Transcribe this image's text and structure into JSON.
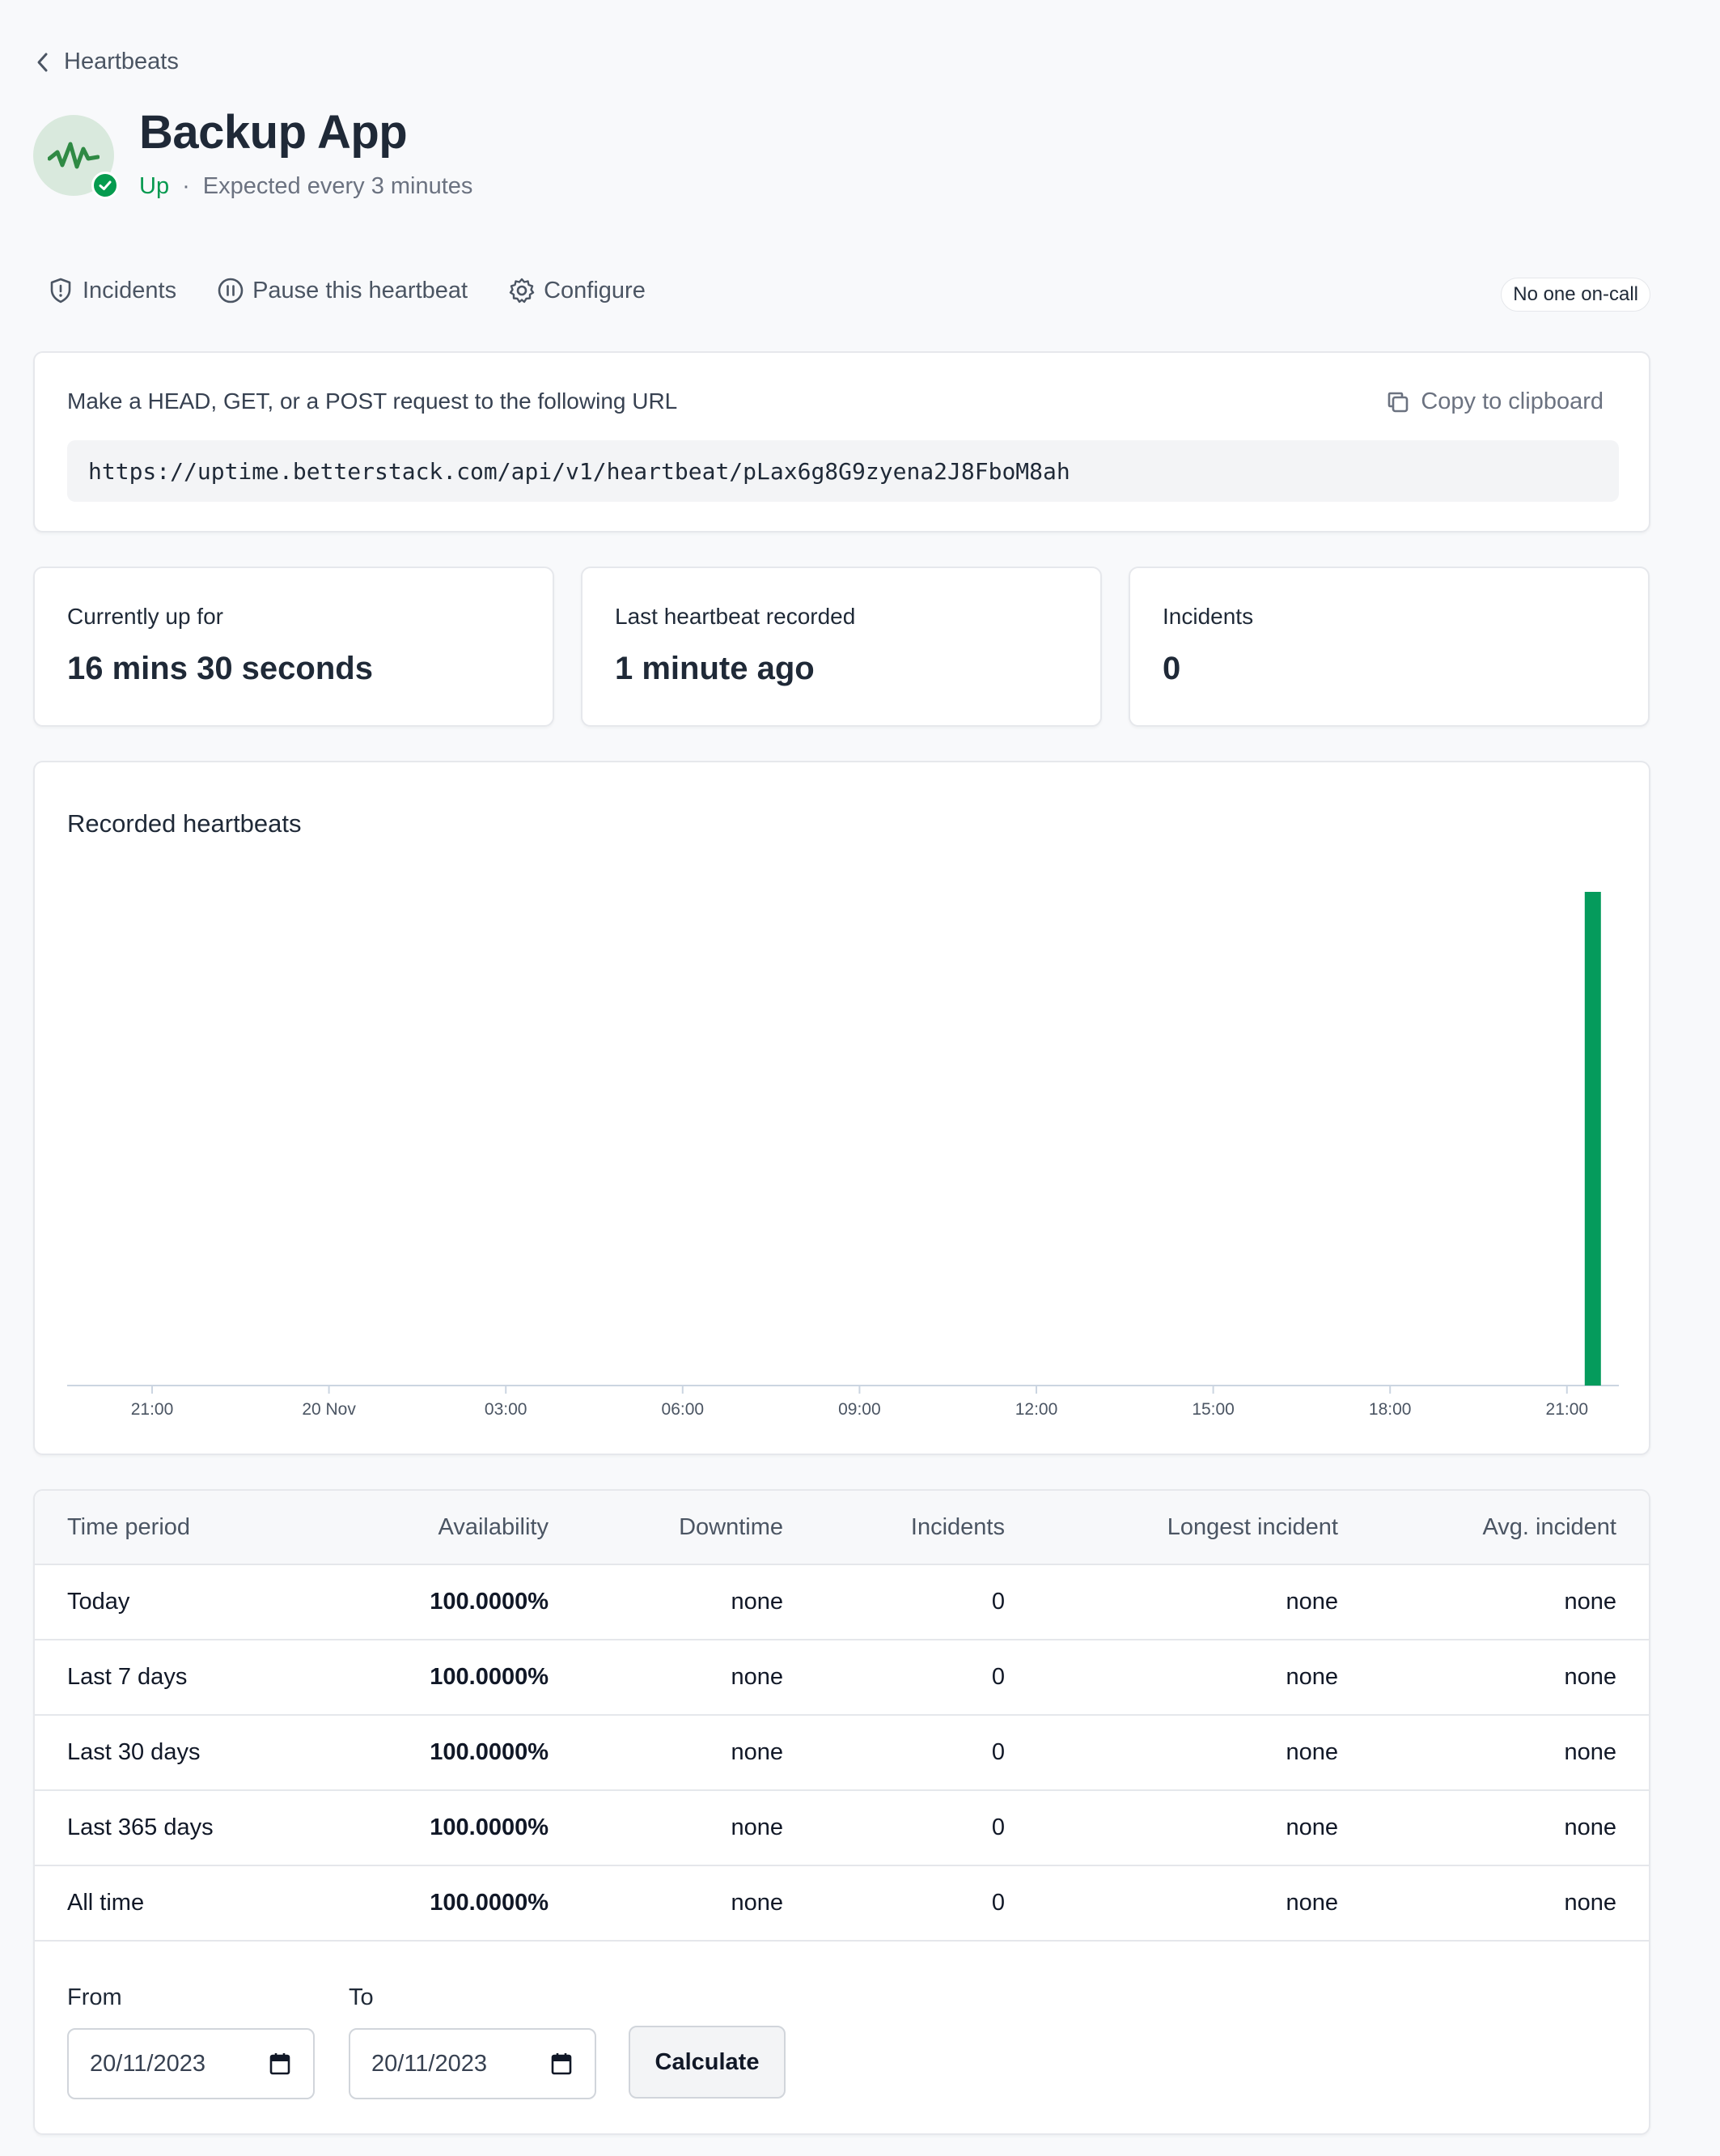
{
  "breadcrumb": {
    "label": "Heartbeats"
  },
  "header": {
    "title": "Backup App",
    "status": "Up",
    "separator": "·",
    "expected": "Expected every 3 minutes"
  },
  "actions": {
    "incidents": "Incidents",
    "pause": "Pause this heartbeat",
    "configure": "Configure"
  },
  "oncall": {
    "label": "No one on-call"
  },
  "url_card": {
    "instructions": "Make a HEAD, GET, or a POST request to the following URL",
    "copy_label": "Copy to clipboard",
    "url": "https://uptime.betterstack.com/api/v1/heartbeat/pLax6g8G9zyena2J8FboM8ah"
  },
  "stats": [
    {
      "label": "Currently up for",
      "value": "16 mins 30 seconds"
    },
    {
      "label": "Last heartbeat recorded",
      "value": "1 minute ago"
    },
    {
      "label": "Incidents",
      "value": "0"
    }
  ],
  "chart_data": {
    "type": "bar",
    "title": "Recorded heartbeats",
    "x_tick_labels": [
      "21:00",
      "20 Nov",
      "03:00",
      "06:00",
      "09:00",
      "12:00",
      "15:00",
      "18:00",
      "21:00"
    ],
    "series": [
      {
        "values": [
          {
            "x": "21:00",
            "y": 1
          }
        ]
      }
    ],
    "grid": false,
    "bar_color": "#059b5c"
  },
  "table": {
    "headers": {
      "period": "Time period",
      "availability": "Availability",
      "downtime": "Downtime",
      "incidents": "Incidents",
      "longest": "Longest incident",
      "avg": "Avg. incident"
    },
    "rows": [
      {
        "period": "Today",
        "availability": "100.0000%",
        "downtime": "none",
        "incidents": "0",
        "longest": "none",
        "avg": "none"
      },
      {
        "period": "Last 7 days",
        "availability": "100.0000%",
        "downtime": "none",
        "incidents": "0",
        "longest": "none",
        "avg": "none"
      },
      {
        "period": "Last 30 days",
        "availability": "100.0000%",
        "downtime": "none",
        "incidents": "0",
        "longest": "none",
        "avg": "none"
      },
      {
        "period": "Last 365 days",
        "availability": "100.0000%",
        "downtime": "none",
        "incidents": "0",
        "longest": "none",
        "avg": "none"
      },
      {
        "period": "All time",
        "availability": "100.0000%",
        "downtime": "none",
        "incidents": "0",
        "longest": "none",
        "avg": "none"
      }
    ]
  },
  "range": {
    "from_label": "From",
    "to_label": "To",
    "from_value": "20/11/2023",
    "to_value": "20/11/2023",
    "calculate_label": "Calculate"
  },
  "colors": {
    "accent_green": "#079a50",
    "bar_green": "#059b5c",
    "background": "#f8f9fb"
  }
}
